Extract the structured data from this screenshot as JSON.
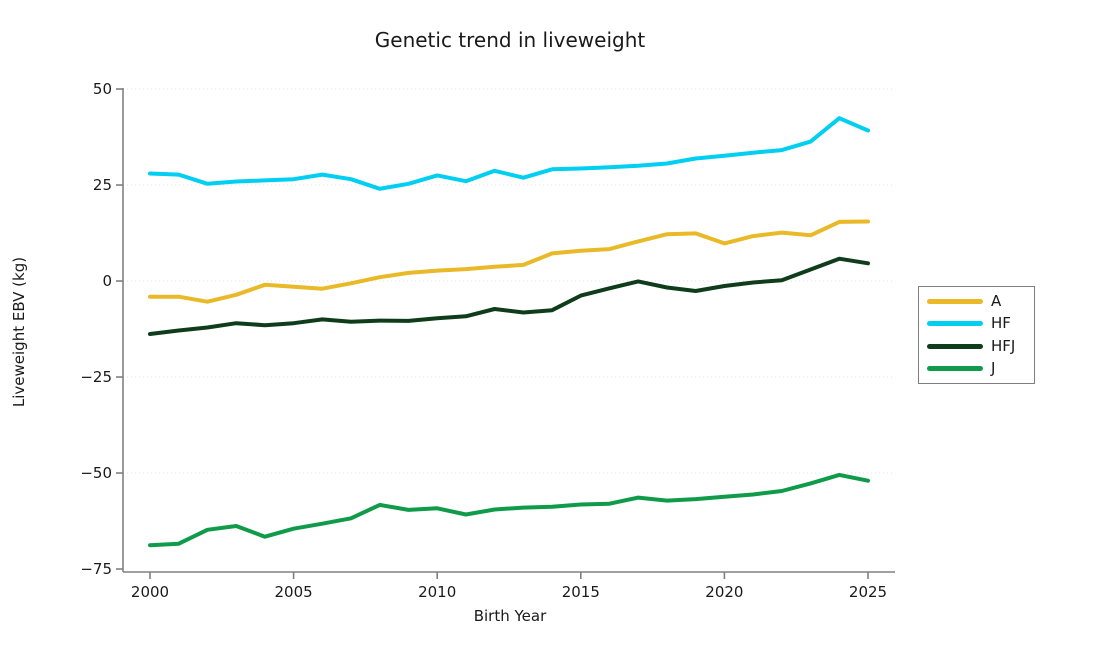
{
  "chart_data": {
    "type": "line",
    "title": "Genetic trend in liveweight",
    "xlabel": "Birth Year",
    "ylabel": "Liveweight EBV (kg)",
    "x": [
      2000,
      2001,
      2002,
      2003,
      2004,
      2005,
      2006,
      2007,
      2008,
      2009,
      2010,
      2011,
      2012,
      2013,
      2014,
      2015,
      2016,
      2017,
      2018,
      2019,
      2020,
      2021,
      2022,
      2023,
      2024,
      2025
    ],
    "series": [
      {
        "name": "A",
        "color": "#E9B928",
        "values": [
          -4.1,
          -4.1,
          -5.4,
          -3.6,
          -1.0,
          -1.5,
          -2.0,
          -0.6,
          1.0,
          2.1,
          2.7,
          3.1,
          3.7,
          4.2,
          7.2,
          7.9,
          8.3,
          10.3,
          12.2,
          12.4,
          9.8,
          11.7,
          12.6,
          11.9,
          15.4,
          15.5
        ]
      },
      {
        "name": "HF",
        "color": "#00CFF2",
        "values": [
          28.0,
          27.7,
          25.3,
          25.9,
          26.2,
          26.5,
          27.7,
          26.5,
          24.0,
          25.3,
          27.5,
          26.0,
          28.7,
          26.9,
          29.1,
          29.3,
          29.6,
          30.0,
          30.6,
          31.9,
          32.6,
          33.4,
          34.1,
          36.3,
          42.4,
          39.2
        ]
      },
      {
        "name": "HFJ",
        "color": "#0F3D1C",
        "values": [
          -13.8,
          -12.9,
          -12.1,
          -11.0,
          -11.5,
          -11.0,
          -10.0,
          -10.6,
          -10.3,
          -10.4,
          -9.7,
          -9.2,
          -7.3,
          -8.2,
          -7.6,
          -3.8,
          -1.9,
          -0.1,
          -1.7,
          -2.6,
          -1.3,
          -0.4,
          0.2,
          3.0,
          5.8,
          4.6
        ]
      },
      {
        "name": "J",
        "color": "#0F9B49",
        "values": [
          -68.8,
          -68.4,
          -64.8,
          -63.8,
          -66.6,
          -64.5,
          -63.2,
          -61.8,
          -58.3,
          -59.6,
          -59.2,
          -60.8,
          -59.5,
          -59.0,
          -58.8,
          -58.2,
          -58.0,
          -56.4,
          -57.2,
          -56.8,
          -56.2,
          -55.6,
          -54.7,
          -52.7,
          -50.5,
          -52.0
        ]
      }
    ],
    "xticks": [
      2000,
      2005,
      2010,
      2015,
      2020,
      2025
    ],
    "yticks": [
      50,
      25,
      0,
      -25,
      -50,
      -75
    ],
    "xlim": [
      2000,
      2025
    ],
    "ylim": [
      -75,
      50
    ],
    "grid": "faint dotted horizontal gridlines",
    "legend_position": "outside-right",
    "axis_color": "#808080",
    "gridline_color": "#e3e3e3",
    "line_width": 4
  }
}
